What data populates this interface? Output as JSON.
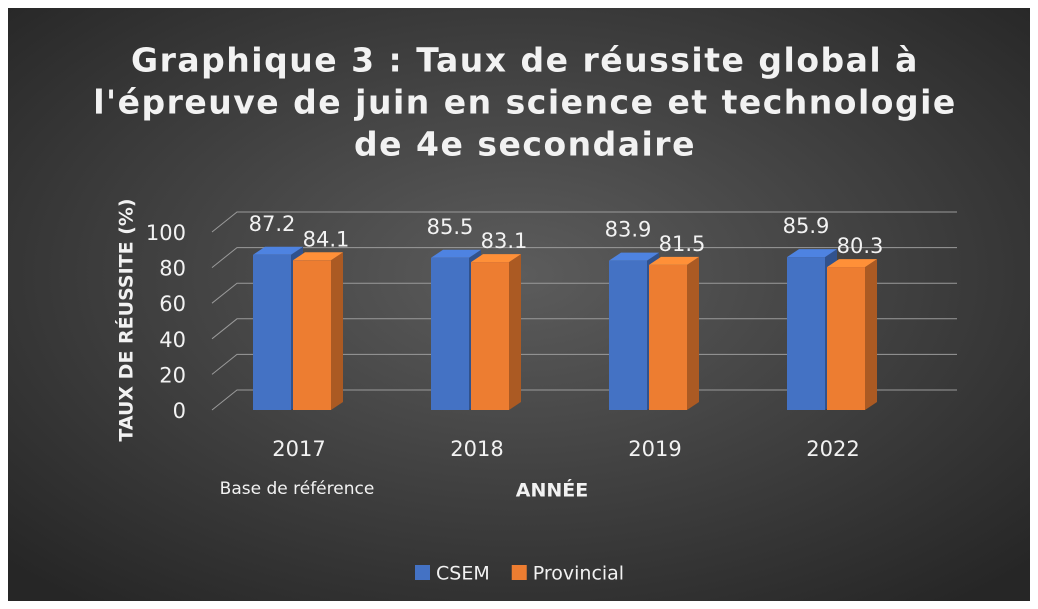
{
  "chart_data": {
    "type": "bar3d",
    "title": [
      "Graphique 3 : Taux de réussite global à",
      "l'épreuve de juin en science et technologie",
      "de 4e secondaire"
    ],
    "categories": [
      "2017",
      "2018",
      "2019",
      "2022"
    ],
    "annotation": "Base de référence",
    "xlabel": "ANNÉE",
    "ylabel": "TAUX DE RÉUSSITE (%)",
    "series": [
      {
        "name": "CSEM",
        "color": "#4472c4",
        "values": [
          87.2,
          85.5,
          83.9,
          85.9
        ]
      },
      {
        "name": "Provincial",
        "color": "#ed7d31",
        "values": [
          84.1,
          83.1,
          81.5,
          80.3
        ]
      }
    ],
    "ylim": [
      0,
      100
    ],
    "yticks": [
      0,
      20,
      40,
      60,
      80,
      100
    ],
    "grid": true,
    "legend": "bottom"
  }
}
